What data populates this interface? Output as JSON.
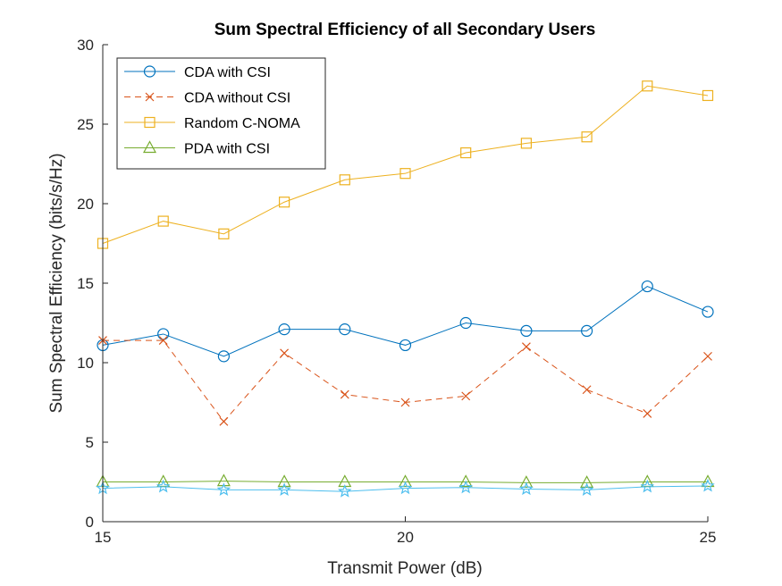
{
  "chart_data": {
    "type": "line",
    "title": "Sum Spectral Efficiency of all Secondary Users",
    "xlabel": "Transmit Power (dB)",
    "ylabel": "Sum Spectral Efficiency (bits/s/Hz)",
    "xlim": [
      15,
      25
    ],
    "ylim": [
      0,
      30
    ],
    "xticks": [
      15,
      20,
      25
    ],
    "yticks": [
      0,
      5,
      10,
      15,
      20,
      25,
      30
    ],
    "grid": false,
    "legend_position": "top-left",
    "x": [
      15,
      16,
      17,
      18,
      19,
      20,
      21,
      22,
      23,
      24,
      25
    ],
    "series": [
      {
        "name": "CDA with CSI",
        "values": [
          11.1,
          11.8,
          10.4,
          12.1,
          12.1,
          11.1,
          12.5,
          12.0,
          12.0,
          14.8,
          13.2
        ],
        "color": "#0072BD",
        "marker": "circle",
        "dash": "solid"
      },
      {
        "name": "CDA without CSI",
        "values": [
          11.4,
          11.4,
          6.3,
          10.6,
          8.0,
          7.5,
          7.9,
          11.0,
          8.3,
          6.8,
          10.4
        ],
        "color": "#D95319",
        "marker": "x",
        "dash": "dashed"
      },
      {
        "name": "Random C-NOMA",
        "values": [
          17.5,
          18.9,
          18.1,
          20.1,
          21.5,
          21.9,
          23.2,
          23.8,
          24.2,
          27.4,
          26.8
        ],
        "color": "#EDB120",
        "marker": "square",
        "dash": "solid"
      },
      {
        "name": "PDA with CSI",
        "values": [
          2.5,
          2.5,
          2.55,
          2.5,
          2.5,
          2.5,
          2.5,
          2.45,
          2.45,
          2.5,
          2.5
        ],
        "color": "#77AC30",
        "marker": "triangle",
        "dash": "solid"
      },
      {
        "name": "",
        "values": [
          2.1,
          2.2,
          2.0,
          2.0,
          1.9,
          2.1,
          2.15,
          2.05,
          2.0,
          2.2,
          2.25
        ],
        "color": "#4DBEEE",
        "marker": "star",
        "dash": "solid"
      }
    ]
  }
}
